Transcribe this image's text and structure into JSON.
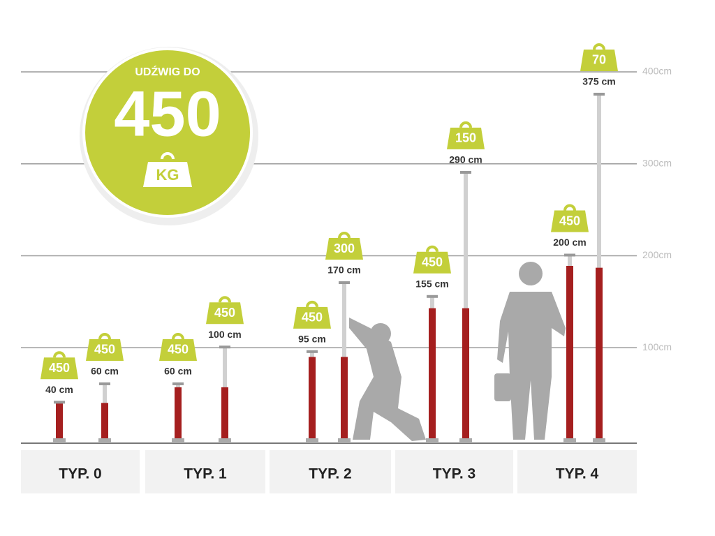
{
  "chart_data": {
    "type": "prop",
    "badge": {
      "caption": "UDŹWIG DO",
      "value": "450",
      "unit": "KG"
    },
    "ylim": [
      0,
      400
    ],
    "yticks": [
      {
        "value": 100,
        "label": "100cm"
      },
      {
        "value": 200,
        "label": "200cm"
      },
      {
        "value": 300,
        "label": "300cm"
      },
      {
        "value": 400,
        "label": "400cm"
      }
    ],
    "grid": true,
    "base_color": "#a51f1f",
    "rod_color": "#d0d0d0",
    "tag_color": "#c3cf3a",
    "groups": [
      {
        "label": "TYP. 0",
        "props": [
          {
            "min": 40,
            "max": 40,
            "max_label": "40 cm",
            "load": 450
          },
          {
            "min": 40,
            "max": 60,
            "max_label": "60 cm",
            "load": 450
          }
        ]
      },
      {
        "label": "TYP. 1",
        "props": [
          {
            "min": 57,
            "max": 60,
            "max_label": "60 cm",
            "load": 450
          },
          {
            "min": 57,
            "max": 100,
            "max_label": "100 cm",
            "load": 450
          }
        ]
      },
      {
        "label": "TYP. 2",
        "props": [
          {
            "min": 90,
            "max": 95,
            "max_label": "95 cm",
            "load": 450
          },
          {
            "min": 90,
            "max": 170,
            "max_label": "170 cm",
            "load": 300
          }
        ]
      },
      {
        "label": "TYP. 3",
        "props": [
          {
            "min": 143,
            "max": 155,
            "max_label": "155 cm",
            "load": 450
          },
          {
            "min": 143,
            "max": 290,
            "max_label": "290 cm",
            "load": 150
          }
        ]
      },
      {
        "label": "TYP. 4",
        "props": [
          {
            "min": 189,
            "max": 200,
            "max_label": "200 cm",
            "load": 450
          },
          {
            "min": 187,
            "max": 375,
            "max_label": "375 cm",
            "load": 70
          }
        ]
      }
    ]
  }
}
